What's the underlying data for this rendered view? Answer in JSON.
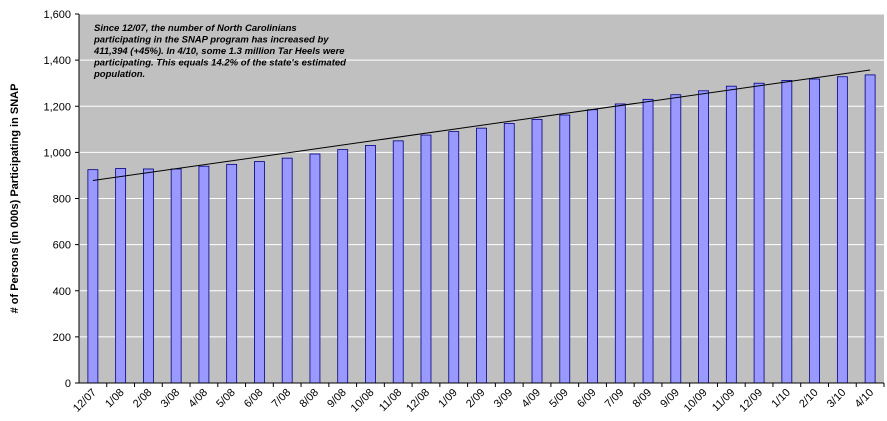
{
  "chart_data": {
    "type": "bar",
    "title": "",
    "xlabel": "",
    "ylabel": "# of Persons (in 000s) Participating in SNAP",
    "ylim": [
      0,
      1600
    ],
    "yticks": [
      "0",
      "200",
      "400",
      "600",
      "800",
      "1,000",
      "1,200",
      "1,400",
      "1,600"
    ],
    "grid": true,
    "legend": "none",
    "categories": [
      "12/07",
      "1/08",
      "2/08",
      "3/08",
      "4/08",
      "5/08",
      "6/08",
      "7/08",
      "8/08",
      "9/08",
      "10/08",
      "11/08",
      "12/08",
      "1/09",
      "2/09",
      "3/09",
      "4/09",
      "5/09",
      "6/09",
      "7/09",
      "8/09",
      "9/09",
      "10/09",
      "11/09",
      "12/09",
      "1/10",
      "2/10",
      "3/10",
      "4/10"
    ],
    "values": [
      925,
      930,
      928,
      928,
      940,
      948,
      960,
      975,
      993,
      1012,
      1030,
      1050,
      1075,
      1090,
      1105,
      1125,
      1143,
      1162,
      1185,
      1210,
      1230,
      1250,
      1267,
      1287,
      1300,
      1312,
      1318,
      1328,
      1336
    ],
    "trendline": {
      "start": 878,
      "end": 1357
    },
    "annotation_lines": [
      "Since 12/07, the number of North Carolinians",
      "participating in the SNAP program has increased by",
      "411,394 (+45%). In 4/10, some 1.3 million Tar Heels were",
      "participating. This equals 14.2% of the state's estimated",
      "population."
    ],
    "colors": {
      "plot_background": "#c0c0c0",
      "bar_fill": "#9999ff",
      "bar_stroke": "#000080",
      "gridline": "#ffffff",
      "trendline": "#000000"
    }
  }
}
